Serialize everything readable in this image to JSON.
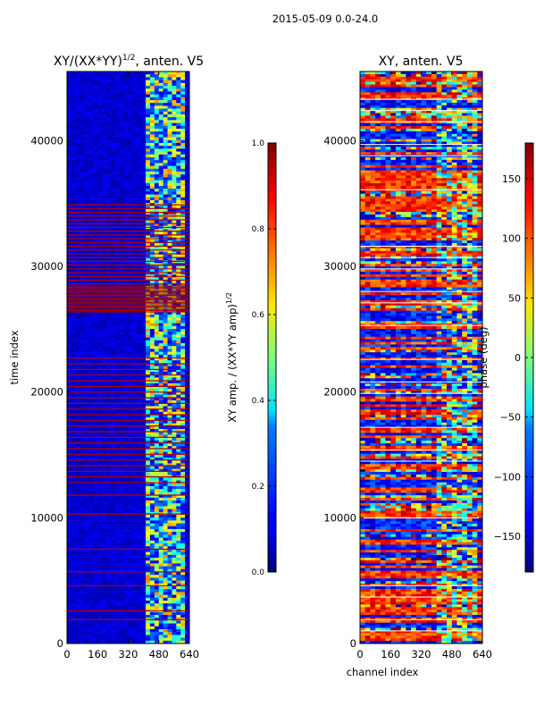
{
  "figure": {
    "suptitle": "2015-05-09 0.0-24.0"
  },
  "chart_data": [
    {
      "type": "heatmap",
      "title_main": "XY/(XX*YY)",
      "title_sup": "1/2",
      "title_tail": ", anten. V5",
      "xlabel": "",
      "ylabel": "time index",
      "xlim": [
        0,
        640
      ],
      "ylim": [
        0,
        45500
      ],
      "xticks": [
        0,
        160,
        320,
        480,
        640
      ],
      "yticks": [
        0,
        10000,
        20000,
        30000,
        40000
      ],
      "colorbar": {
        "label_main": "XY amp. / (XX*YY amp)",
        "label_sup": "1/2",
        "range": [
          0.0,
          1.0
        ],
        "ticks": [
          "0.0",
          "0.2",
          "0.4",
          "0.6",
          "0.8",
          "1.0"
        ],
        "colormap": "jet"
      }
    },
    {
      "type": "heatmap",
      "title": "XY, anten. V5",
      "xlabel": "channel index",
      "ylabel": "",
      "xlim": [
        0,
        640
      ],
      "ylim": [
        0,
        45500
      ],
      "xticks": [
        0,
        160,
        320,
        480,
        640
      ],
      "yticks": [
        0,
        10000,
        20000,
        30000,
        40000
      ],
      "colorbar": {
        "label": "phase (deg)",
        "range": [
          -180,
          180
        ],
        "ticks": [
          "−150",
          "−100",
          "−50",
          "0",
          "50",
          "100",
          "150"
        ],
        "tick_values": [
          -150,
          -100,
          -50,
          0,
          50,
          100,
          150
        ],
        "colormap": "jet"
      }
    }
  ],
  "colors": {
    "jet_dark_blue": "#00007f",
    "jet_blue": "#0000ff",
    "jet_cyan": "#00ffff",
    "jet_yellow": "#ffff00",
    "jet_red": "#ff0000",
    "jet_dark_red": "#7f0000"
  }
}
